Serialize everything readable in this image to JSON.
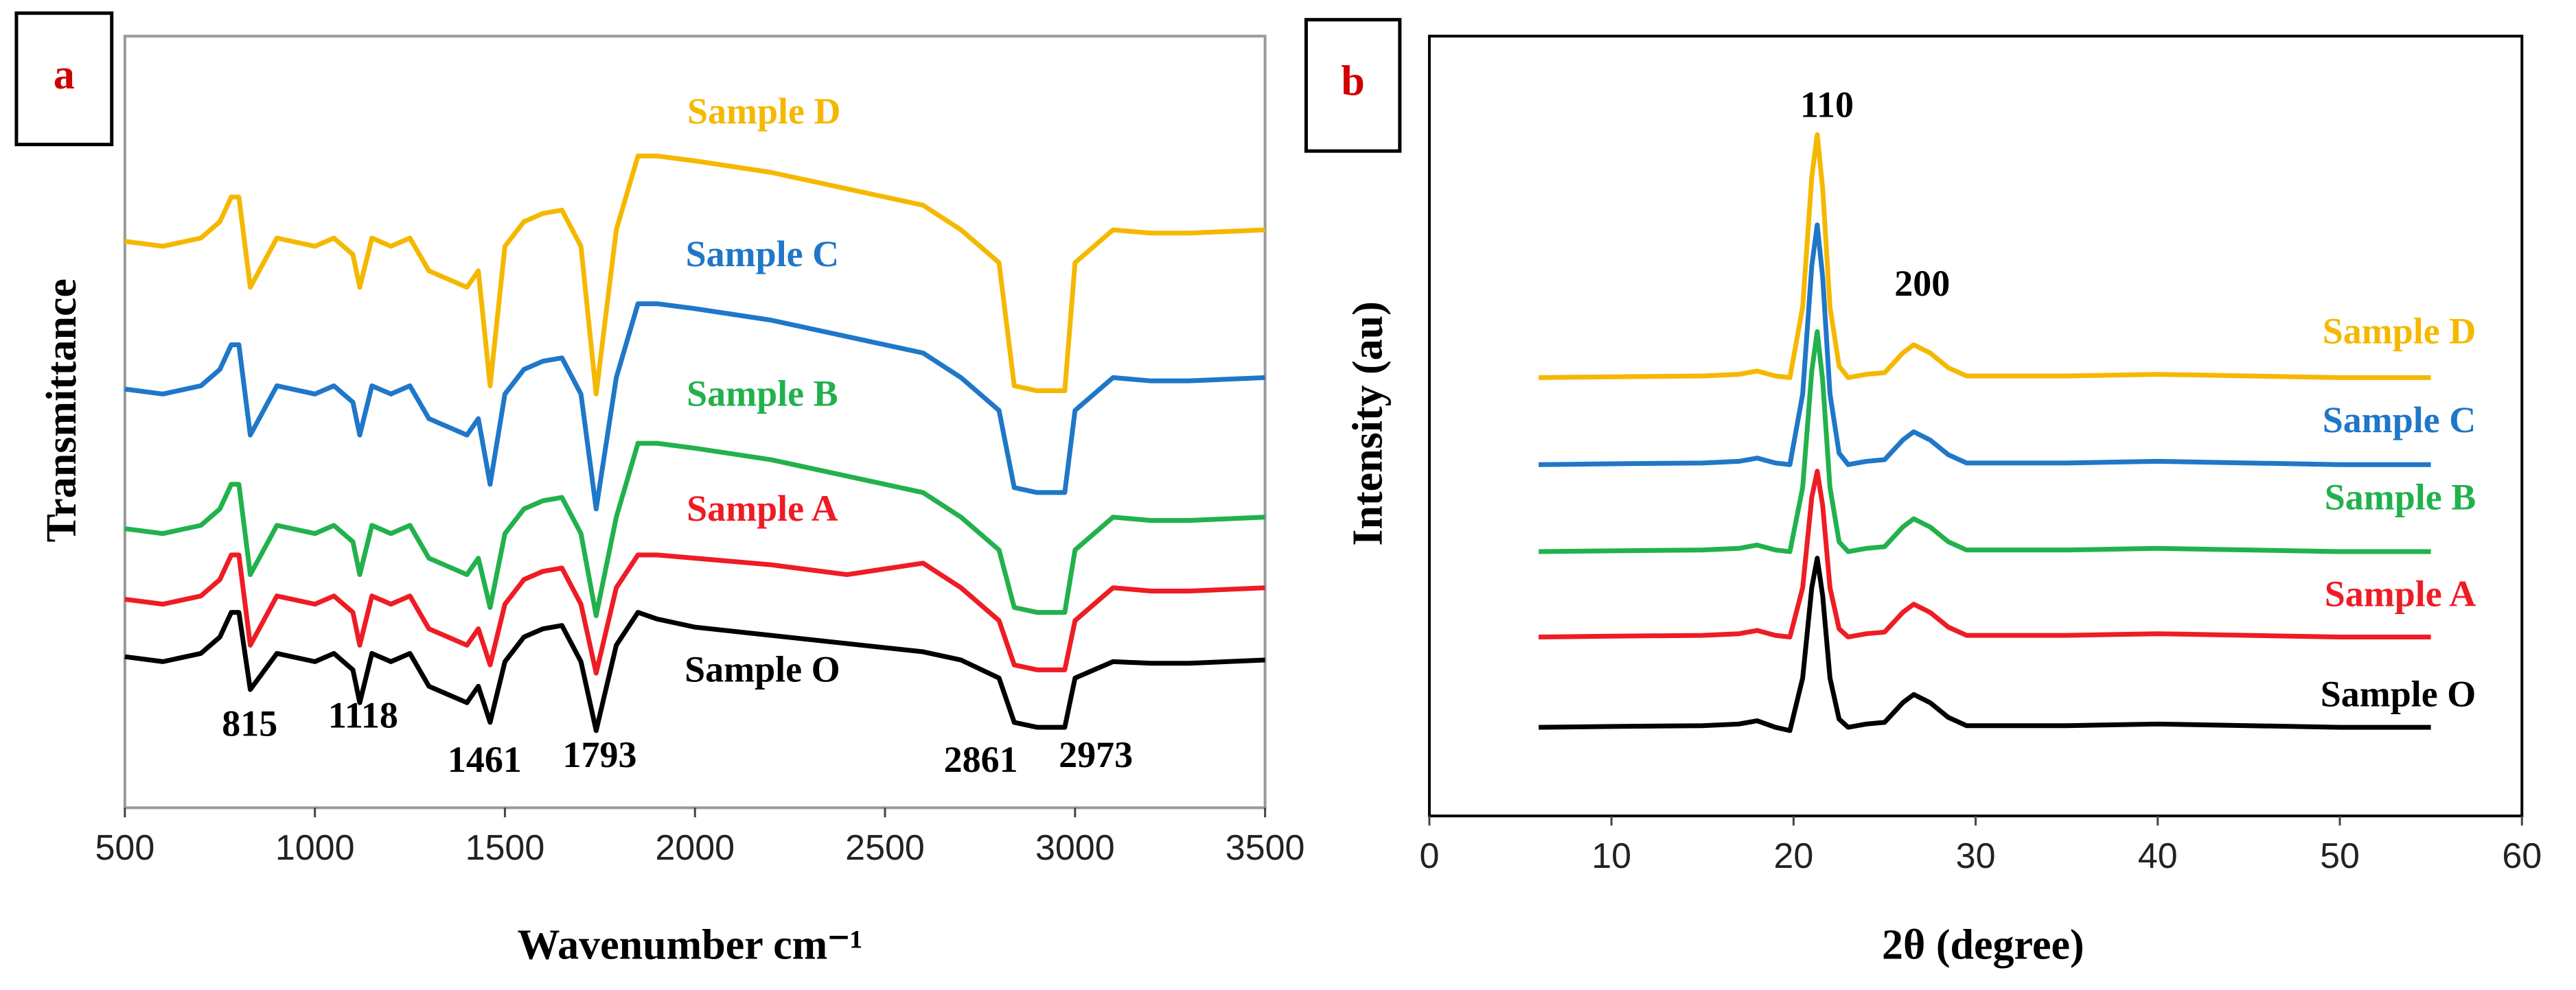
{
  "chart_data": [
    {
      "type": "line",
      "panel_label": "a",
      "x_label": "Wavenumber cm⁻¹",
      "y_label": "Transmittance",
      "xlim": [
        500,
        3500
      ],
      "xticks": [
        500,
        1000,
        1500,
        2000,
        2500,
        3000,
        3500
      ],
      "ylim": [
        0,
        470
      ],
      "annotations": [
        "815",
        "1118",
        "1461",
        "1793",
        "2861",
        "2973"
      ],
      "x": [
        500,
        600,
        700,
        750,
        780,
        800,
        830,
        900,
        1000,
        1050,
        1100,
        1118,
        1150,
        1200,
        1250,
        1300,
        1350,
        1400,
        1430,
        1461,
        1500,
        1550,
        1600,
        1650,
        1700,
        1740,
        1793,
        1850,
        1900,
        2000,
        2200,
        2400,
        2600,
        2700,
        2800,
        2840,
        2900,
        2973,
        3000,
        3100,
        3200,
        3300,
        3500
      ],
      "series": [
        {
          "name": "Sample D",
          "color": "#f5b800",
          "values": [
            345,
            342,
            347,
            357,
            372,
            372,
            317,
            347,
            342,
            347,
            337,
            317,
            347,
            342,
            347,
            327,
            322,
            317,
            327,
            257,
            342,
            357,
            362,
            364,
            342,
            252,
            352,
            397,
            397,
            394,
            387,
            377,
            367,
            352,
            332,
            257,
            254,
            254,
            332,
            352,
            350,
            350,
            352
          ]
        },
        {
          "name": "Sample C",
          "color": "#1f77c8",
          "values": [
            255,
            252,
            257,
            267,
            282,
            282,
            227,
            257,
            252,
            257,
            247,
            227,
            257,
            252,
            257,
            237,
            232,
            227,
            237,
            197,
            252,
            267,
            272,
            274,
            252,
            182,
            262,
            307,
            307,
            304,
            297,
            287,
            277,
            262,
            242,
            195,
            192,
            192,
            242,
            262,
            260,
            260,
            262
          ]
        },
        {
          "name": "Sample B",
          "color": "#22b14c",
          "values": [
            170,
            167,
            172,
            182,
            197,
            197,
            142,
            172,
            167,
            172,
            162,
            142,
            172,
            167,
            172,
            152,
            147,
            142,
            152,
            122,
            167,
            182,
            187,
            189,
            167,
            117,
            177,
            222,
            222,
            219,
            212,
            202,
            192,
            177,
            157,
            122,
            119,
            119,
            157,
            177,
            175,
            175,
            177
          ]
        },
        {
          "name": "Sample A",
          "color": "#ee1c24",
          "values": [
            127,
            124,
            129,
            139,
            154,
            154,
            99,
            129,
            124,
            129,
            119,
            99,
            129,
            124,
            129,
            109,
            104,
            99,
            109,
            87,
            124,
            139,
            144,
            146,
            124,
            82,
            134,
            154,
            154,
            152,
            148,
            142,
            149,
            134,
            114,
            87,
            84,
            84,
            114,
            134,
            132,
            132,
            134
          ]
        },
        {
          "name": "Sample O",
          "color": "#000000",
          "values": [
            92,
            89,
            94,
            104,
            119,
            119,
            72,
            94,
            89,
            94,
            84,
            64,
            94,
            89,
            94,
            74,
            69,
            64,
            74,
            52,
            89,
            104,
            109,
            111,
            89,
            47,
            99,
            119,
            115,
            110,
            105,
            100,
            95,
            90,
            79,
            52,
            49,
            49,
            79,
            89,
            88,
            88,
            90
          ]
        }
      ]
    },
    {
      "type": "line",
      "panel_label": "b",
      "x_label": "2θ (degree)",
      "y_label": "Intensity (au)",
      "xlim": [
        0,
        60
      ],
      "xticks": [
        0,
        10,
        20,
        30,
        40,
        50,
        60
      ],
      "ylim": [
        0,
        475
      ],
      "annotations": [
        "110",
        "200"
      ],
      "x": [
        6,
        10,
        15,
        17,
        18,
        19,
        19.8,
        20.5,
        21,
        21.3,
        21.6,
        22,
        22.5,
        23,
        24,
        25,
        26,
        26.6,
        27.5,
        28.5,
        29.5,
        32,
        35,
        40,
        45,
        50,
        55
      ],
      "series": [
        {
          "name": "Sample D",
          "color": "#f5b800",
          "values": [
            267,
            267.5,
            268,
            269,
            271,
            268,
            267,
            310,
            389,
            415,
            382,
            310,
            274,
            267,
            269,
            270,
            282,
            287,
            282,
            273,
            268,
            268,
            268,
            269,
            268,
            267,
            267
          ]
        },
        {
          "name": "Sample C",
          "color": "#1f77c8",
          "values": [
            214,
            214.5,
            215,
            216,
            218,
            215,
            214,
            257,
            335,
            360,
            328,
            257,
            221,
            214,
            216,
            217,
            229,
            234,
            229,
            220,
            215,
            215,
            215,
            216,
            215,
            214,
            214
          ]
        },
        {
          "name": "Sample B",
          "color": "#22b14c",
          "values": [
            161,
            161.5,
            162,
            163,
            165,
            162,
            161,
            200,
            271,
            295,
            265,
            200,
            167,
            161,
            163,
            164,
            176,
            181,
            176,
            167,
            162,
            162,
            162,
            163,
            162,
            161,
            161
          ]
        },
        {
          "name": "Sample A",
          "color": "#ee1c24",
          "values": [
            109,
            109.5,
            110,
            111,
            113,
            110,
            109,
            139,
            194,
            210,
            189,
            139,
            114,
            109,
            111,
            112,
            124,
            129,
            124,
            115,
            110,
            110,
            110,
            111,
            110,
            109,
            109
          ]
        },
        {
          "name": "Sample O",
          "color": "#000000",
          "values": [
            54,
            54.5,
            55,
            56,
            58,
            54,
            52,
            84,
            139,
            157,
            134,
            84,
            59,
            54,
            56,
            57,
            69,
            74,
            69,
            60,
            55,
            55,
            55,
            56,
            55,
            54,
            54
          ]
        }
      ]
    }
  ]
}
